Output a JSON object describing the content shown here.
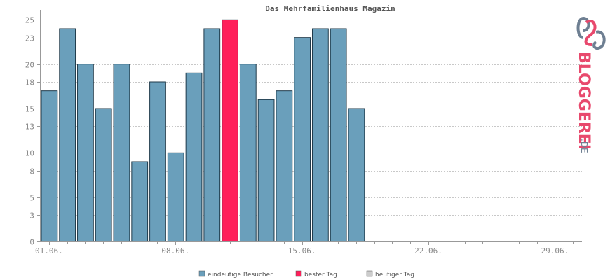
{
  "chart_data": {
    "type": "bar",
    "title": "Das Mehrfamilienhaus Magazin",
    "xlabel": "",
    "ylabel": "",
    "ylim": [
      0,
      25.5
    ],
    "y_ticks": [
      0,
      3,
      5,
      8,
      10,
      13,
      15,
      18,
      20,
      23,
      25
    ],
    "x_ticks": [
      "01.06.",
      "08.06.",
      "15.06.",
      "22.06.",
      "29.06."
    ],
    "x_tick_day_index": [
      0,
      7,
      14,
      21,
      28
    ],
    "days_in_period": 30,
    "values": [
      17,
      24,
      20,
      15,
      20,
      9,
      18,
      10,
      19,
      24,
      25,
      20,
      16,
      17,
      23,
      24,
      24,
      15
    ],
    "best_day_index": 10,
    "grid": true,
    "legend_position": "bottom-center"
  },
  "legend": [
    {
      "label": "eindeutige Besucher",
      "color": "#6a9fbb"
    },
    {
      "label": "bester Tag",
      "color": "#ff1f5a"
    },
    {
      "label": "heutiger Tag",
      "color": "#cccccc"
    }
  ],
  "colors": {
    "bar": "#6a9fbb",
    "best": "#ff1f5a",
    "bar_stroke": "#1f3a4a",
    "grid": "#c8c8c8",
    "axis": "#999999"
  },
  "logo": {
    "text": "BLOGGEREI",
    "suffix": ".DE",
    "color_main": "#e8496d",
    "color_secondary": "#6e7f92"
  }
}
